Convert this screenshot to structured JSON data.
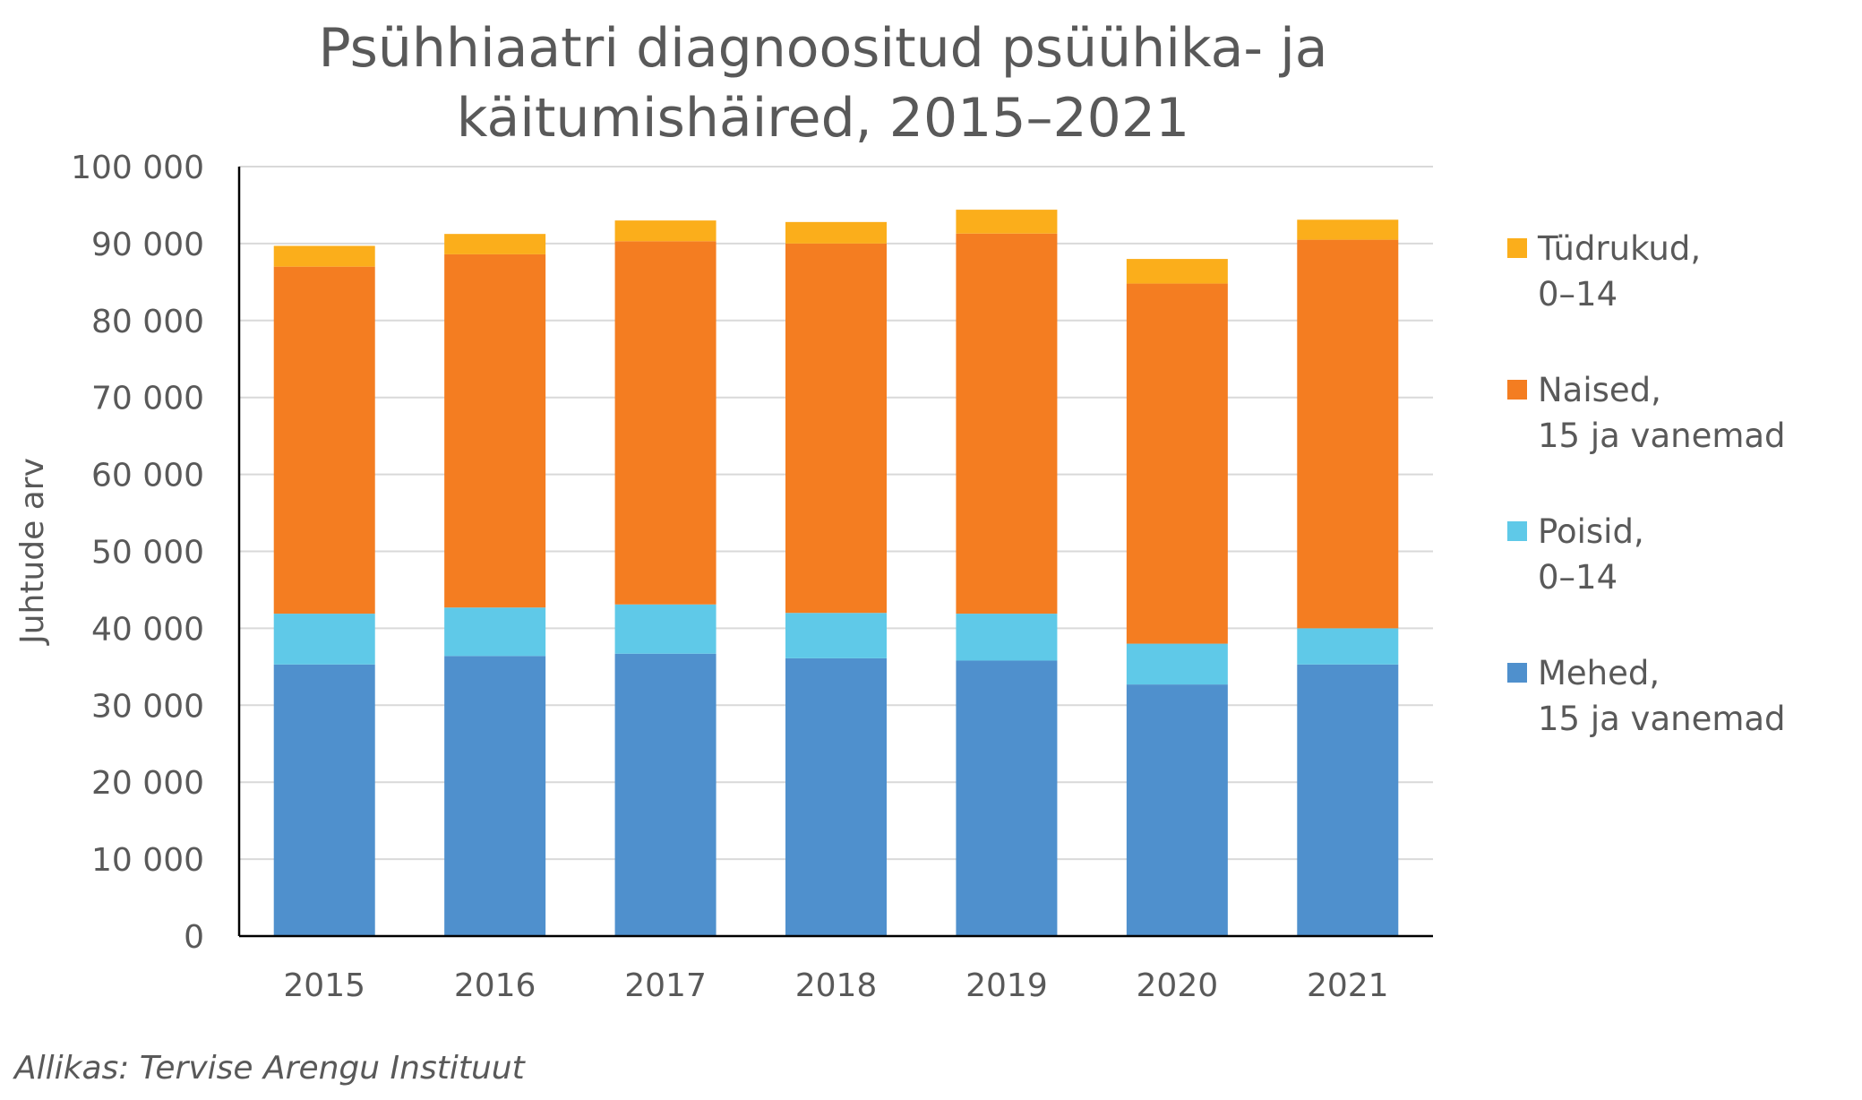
{
  "chart_data": {
    "type": "bar",
    "stacked": true,
    "title": [
      "Psühhiaatri diagnoositud psüühika- ja",
      "käitumishäired, 2015–2021"
    ],
    "xlabel": "",
    "ylabel": "Juhtude arv",
    "ylim": [
      0,
      100000
    ],
    "yticks": [
      "0",
      "10 000",
      "20 000",
      "30 000",
      "40 000",
      "50 000",
      "60 000",
      "70 000",
      "80 000",
      "90 000",
      "100 000"
    ],
    "grid": true,
    "legend_position": "right",
    "categories": [
      "2015",
      "2016",
      "2017",
      "2018",
      "2019",
      "2020",
      "2021"
    ],
    "series": [
      {
        "name": [
          "Mehed,",
          "15 ja vanemad"
        ],
        "color": "#4F90CD",
        "values": [
          35300,
          36400,
          36700,
          36100,
          35800,
          32700,
          35300
        ]
      },
      {
        "name": [
          "Poisid,",
          "0–14"
        ],
        "color": "#5FC9E8",
        "values": [
          6600,
          6300,
          6400,
          5900,
          6100,
          5300,
          4700
        ]
      },
      {
        "name": [
          "Naised,",
          "15 ja vanemad"
        ],
        "color": "#F47D21",
        "values": [
          45100,
          45900,
          47200,
          48000,
          49400,
          46800,
          50500
        ]
      },
      {
        "name": [
          "Tüdrukud,",
          "0–14"
        ],
        "color": "#FBAE1B",
        "values": [
          2700,
          2650,
          2700,
          2800,
          3100,
          3200,
          2600
        ]
      }
    ],
    "source": "Allikas: Tervise Arengu Instituut"
  }
}
